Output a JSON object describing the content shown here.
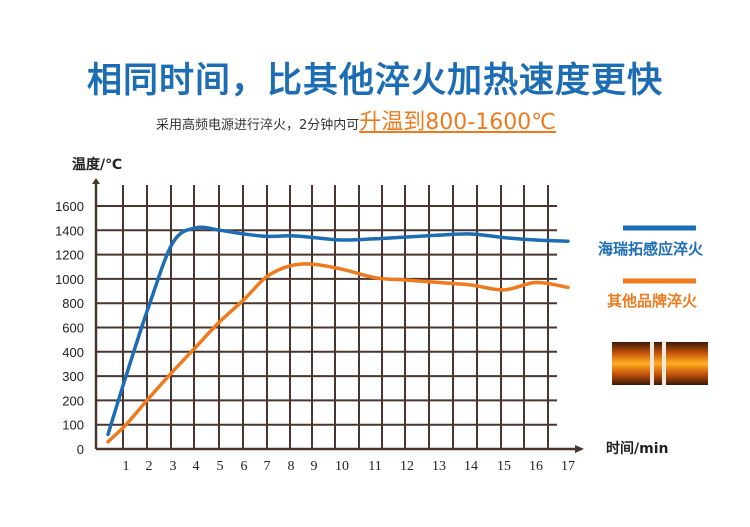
{
  "header": {
    "title": "相同时间，比其他淬火加热速度更快",
    "subtitle_plain": "采用高频电源进行淬火，2分钟内可",
    "subtitle_highlight": "升温到800-1600℃"
  },
  "chart_data": {
    "type": "line",
    "ylabel": "温度/℃",
    "xlabel": "时间/min",
    "y_ticks": [
      0,
      100,
      200,
      300,
      400,
      600,
      800,
      1000,
      1200,
      1400,
      1600
    ],
    "x_ticks": [
      1,
      2,
      3,
      4,
      5,
      6,
      7,
      8,
      9,
      10,
      11,
      12,
      13,
      14,
      15,
      16,
      17
    ],
    "ylim": [
      0,
      1600
    ],
    "xlim": [
      0,
      17
    ],
    "grid": true,
    "legend_position": "right",
    "series": [
      {
        "name": "海瑞拓感应淬火",
        "color": "#1c6db4",
        "points": [
          [
            0.4,
            60
          ],
          [
            1,
            300
          ],
          [
            2,
            780
          ],
          [
            3,
            1300
          ],
          [
            4,
            1420
          ],
          [
            5,
            1400
          ],
          [
            6,
            1370
          ],
          [
            7,
            1350
          ],
          [
            8,
            1355
          ],
          [
            9,
            1340
          ],
          [
            10,
            1320
          ],
          [
            11,
            1330
          ],
          [
            12,
            1345
          ],
          [
            13,
            1360
          ],
          [
            14,
            1370
          ],
          [
            15,
            1340
          ],
          [
            16,
            1320
          ],
          [
            17,
            1310
          ]
        ]
      },
      {
        "name": "其他品牌淬火",
        "color": "#ef7a1e",
        "points": [
          [
            0.4,
            30
          ],
          [
            1,
            100
          ],
          [
            2,
            210
          ],
          [
            3,
            320
          ],
          [
            4,
            440
          ],
          [
            5,
            650
          ],
          [
            6,
            830
          ],
          [
            7,
            1020
          ],
          [
            8,
            1110
          ],
          [
            9,
            1120
          ],
          [
            10,
            1080
          ],
          [
            11,
            1010
          ],
          [
            12,
            990
          ],
          [
            13,
            970
          ],
          [
            14,
            950
          ],
          [
            15,
            910
          ],
          [
            16,
            970
          ],
          [
            17,
            930
          ]
        ]
      }
    ]
  }
}
